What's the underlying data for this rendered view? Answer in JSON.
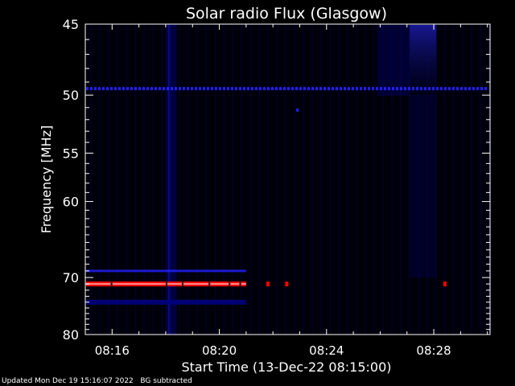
{
  "chart_data": {
    "type": "heatmap",
    "title": "Solar radio Flux (Glasgow)",
    "xlabel": "Start Time (13-Dec-22 08:15:00)",
    "ylabel": "Frequency [MHz]",
    "x_ticks": [
      "08:16",
      "08:20",
      "08:24",
      "08:28"
    ],
    "x_tick_minutes": [
      16,
      20,
      24,
      28
    ],
    "xlim_minutes": [
      15.0,
      30.1
    ],
    "y_ticks": [
      45,
      50,
      55,
      60,
      70,
      80
    ],
    "ylim": [
      45,
      80
    ],
    "y_scale": "reciprocal",
    "grid": false,
    "colormap": [
      "#000000",
      "#000080",
      "#2020ff",
      "#ff0000"
    ],
    "features": {
      "red_band_mhz": 71,
      "red_band_minutes": [
        15.0,
        21.0
      ],
      "red_band_blips_minutes": [
        21.8,
        22.5,
        28.4
      ],
      "blue_line_mhz": 49.5,
      "blue_band_upper_mhz": 69,
      "blue_band_lower_mhz": 74,
      "burst_minutes": [
        27.1,
        28.1
      ],
      "burst_mhz": [
        45,
        50
      ],
      "vertical_streak_minutes": [
        18.0,
        18.4
      ],
      "blue_dot_minute": 22.9,
      "blue_dot_mhz": 51.2
    }
  },
  "footer": {
    "updated": "Updated Mon Dec 19 15:16:07 2022",
    "note": "BG subtracted"
  }
}
